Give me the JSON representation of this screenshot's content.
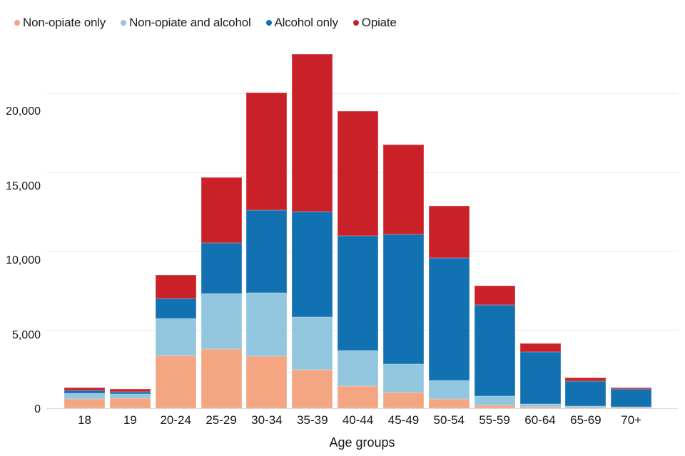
{
  "chart_data": {
    "type": "bar",
    "stacked": true,
    "title": "",
    "categories": [
      "18",
      "19",
      "20-24",
      "25-29",
      "30-34",
      "35-39",
      "40-44",
      "45-49",
      "50-54",
      "55-59",
      "60-64",
      "65-69",
      "70+"
    ],
    "series": [
      {
        "name": "Non-opiate only",
        "color": "#F4A582",
        "values": [
          600,
          650,
          3360,
          3740,
          3330,
          2430,
          1400,
          1000,
          580,
          190,
          90,
          70,
          70
        ]
      },
      {
        "name": "Non-opiate and alcohol",
        "color": "#92C5DE",
        "values": [
          360,
          260,
          2340,
          3540,
          4000,
          3360,
          2260,
          1810,
          1180,
          580,
          180,
          50,
          30
        ]
      },
      {
        "name": "Alcohol only",
        "color": "#1271B0",
        "values": [
          170,
          150,
          1280,
          3210,
          5250,
          6700,
          7290,
          8230,
          7810,
          5800,
          3330,
          1590,
          1130
        ]
      },
      {
        "name": "Opiate",
        "color": "#CA2128",
        "values": [
          200,
          170,
          1480,
          4180,
          7490,
          10030,
          7930,
          5720,
          3280,
          1240,
          510,
          230,
          100
        ]
      }
    ],
    "xlabel": "Age groups",
    "ylabel": "",
    "ylim": [
      0,
      23500
    ],
    "yticks": [
      0,
      5000,
      10000,
      15000,
      20000
    ],
    "ytick_labels": [
      "0",
      "5,000",
      "10,000",
      "15,000",
      "20,000"
    ],
    "grid": true,
    "legend_position": "top-left"
  },
  "colors": {
    "background": "#ffffff",
    "gridline": "#e9e9e9",
    "baseline": "#d9d9d9",
    "text": "#161616"
  }
}
